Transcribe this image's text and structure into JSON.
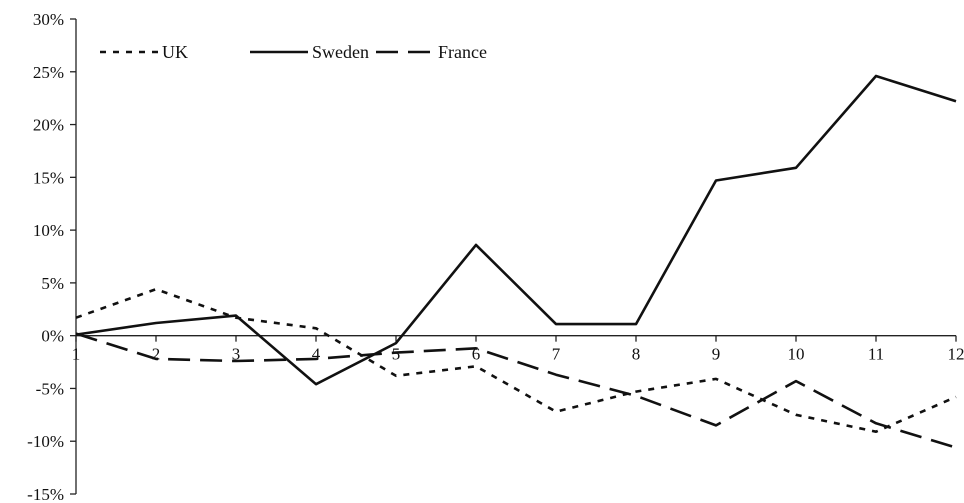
{
  "chart_data": {
    "type": "line",
    "title": "",
    "xlabel": "",
    "ylabel": "",
    "x": [
      1,
      2,
      3,
      4,
      5,
      6,
      7,
      8,
      9,
      10,
      11,
      12
    ],
    "x_tick_labels": [
      "1",
      "2",
      "3",
      "4",
      "5",
      "6",
      "7",
      "8",
      "9",
      "10",
      "11",
      "12"
    ],
    "ylim": [
      -15,
      30
    ],
    "y_ticks": [
      30,
      25,
      20,
      15,
      10,
      5,
      0,
      -5,
      -10,
      -15
    ],
    "y_tick_labels": [
      "30%",
      "25%",
      "20%",
      "15%",
      "10%",
      "5%",
      "0%",
      "-5%",
      "-10%",
      "-15%"
    ],
    "grid": false,
    "legend_position": "top-left",
    "series": [
      {
        "name": "UK",
        "style": "dotted",
        "color": "#111111",
        "values": [
          1.7,
          4.4,
          1.7,
          0.7,
          -3.8,
          -2.9,
          -7.2,
          -5.3,
          -4.1,
          -7.5,
          -9.1,
          -5.8
        ]
      },
      {
        "name": "Sweden",
        "style": "solid",
        "color": "#111111",
        "values": [
          0.1,
          1.2,
          1.9,
          -4.6,
          -0.7,
          8.6,
          1.1,
          1.1,
          14.7,
          15.9,
          24.6,
          22.2
        ]
      },
      {
        "name": "France",
        "style": "dashed",
        "color": "#111111",
        "values": [
          0.2,
          -2.2,
          -2.4,
          -2.2,
          -1.6,
          -1.2,
          -3.7,
          -5.7,
          -8.5,
          -4.3,
          -8.3,
          -10.6
        ]
      }
    ]
  }
}
